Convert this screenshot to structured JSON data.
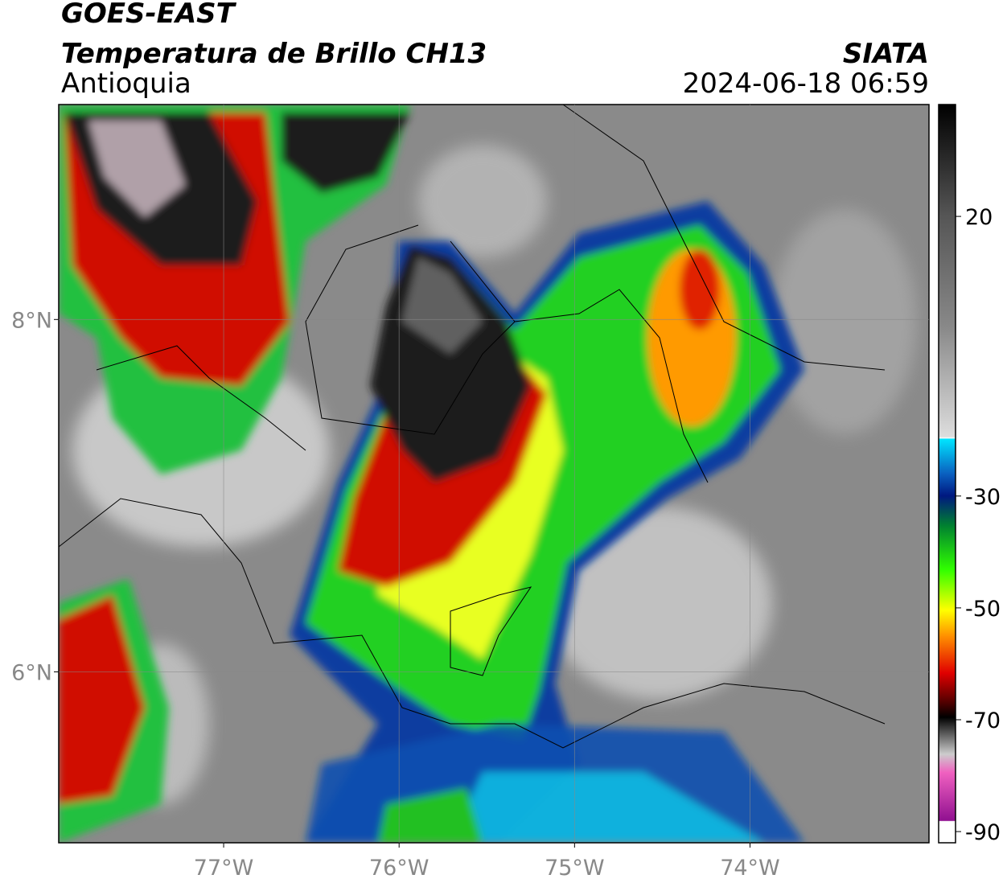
{
  "header": {
    "title": "GOES-EAST",
    "subtitle": "Temperatura de Brillo CH13",
    "region": "Antioquia",
    "source": "SIATA",
    "datetime": "2024-06-18 06:59"
  },
  "map": {
    "xlim": [
      -77.94,
      -72.98
    ],
    "ylim": [
      5.03,
      9.22
    ],
    "xticks": [
      {
        "value": -77,
        "label": "77°W"
      },
      {
        "value": -76,
        "label": "76°W"
      },
      {
        "value": -75,
        "label": "75°W"
      },
      {
        "value": -74,
        "label": "74°W"
      }
    ],
    "yticks": [
      {
        "value": 8,
        "label": "8°N"
      },
      {
        "value": 6,
        "label": "6°N"
      }
    ],
    "grid": true
  },
  "colorbar": {
    "lim": [
      -92,
      40
    ],
    "ticks": [
      20,
      -30,
      -50,
      -70,
      -90
    ]
  }
}
